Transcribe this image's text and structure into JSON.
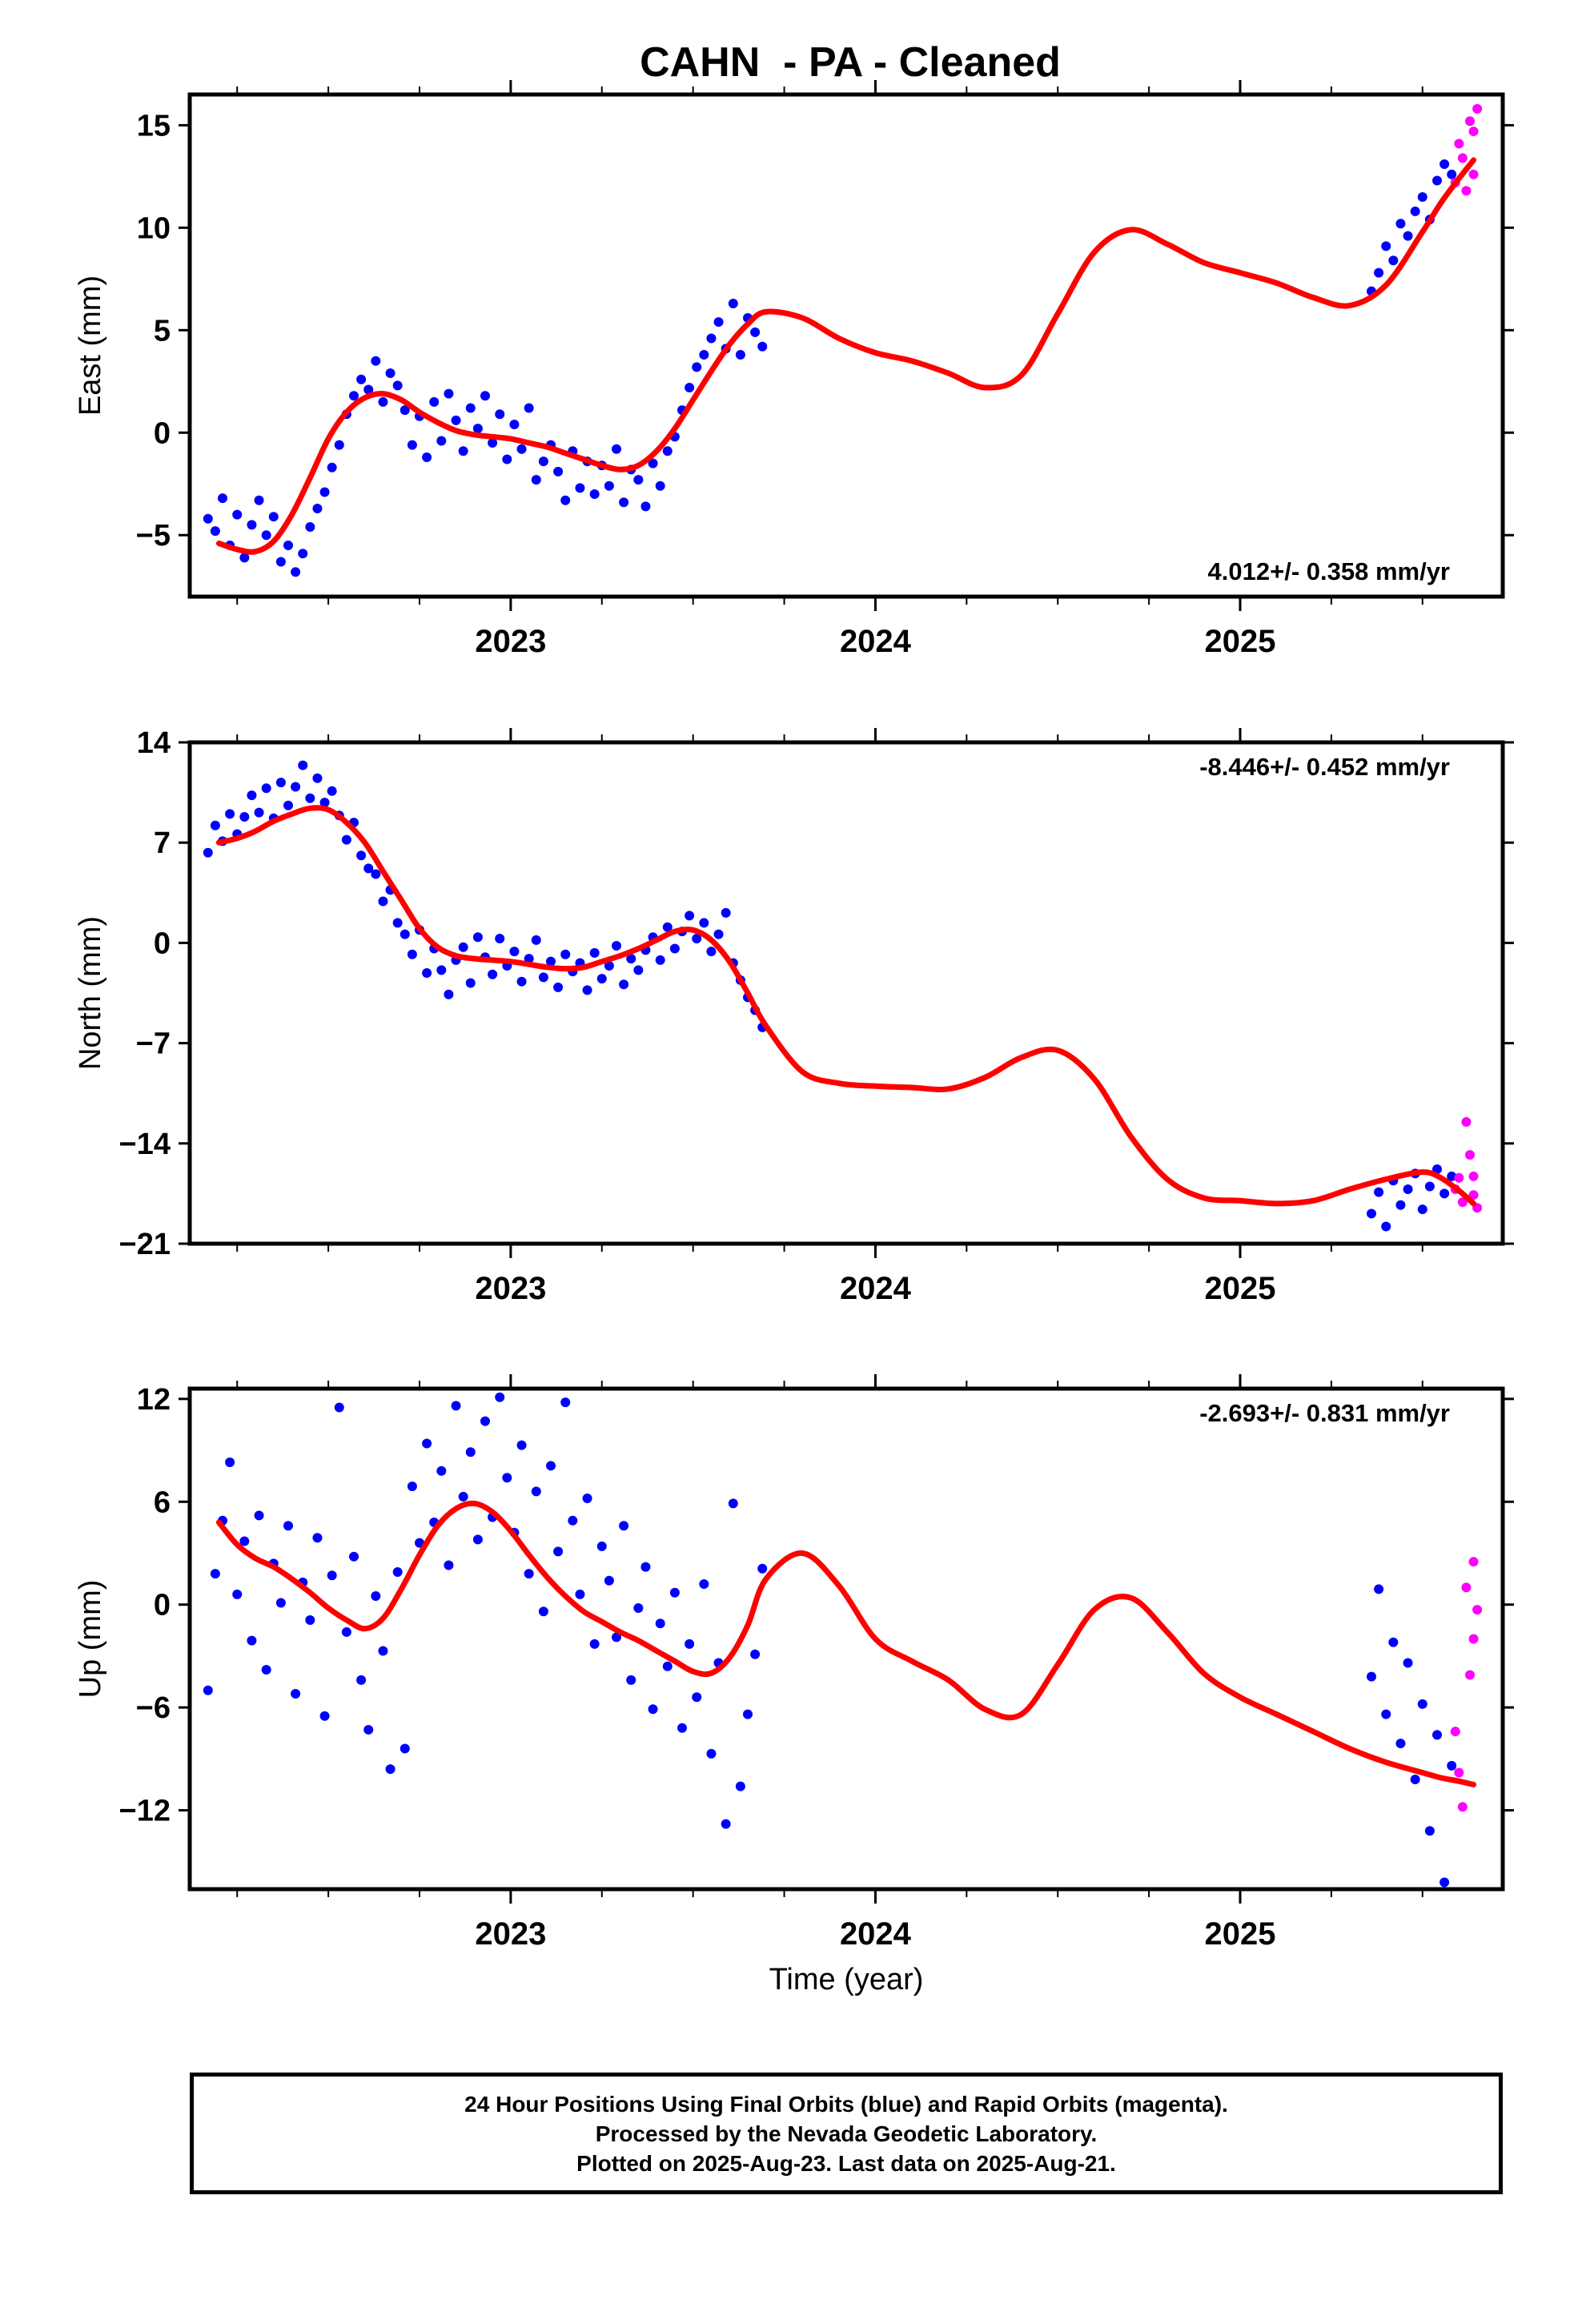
{
  "title": "CAHN  - PA - Cleaned",
  "colors": {
    "final": "#0000ff",
    "rapid": "#ff00ff",
    "model": "#ff0000"
  },
  "chart_data": [
    {
      "type": "scatter",
      "key": "east",
      "ylabel": "East (mm)",
      "xlabel": "",
      "xlim": [
        2022.12,
        2025.72
      ],
      "ylim": [
        -8,
        16.5
      ],
      "yticks": [
        -5,
        0,
        5,
        10,
        15
      ],
      "ytick_labels": [
        "−5",
        "0",
        "5",
        "10",
        "15"
      ],
      "xticks": [
        2023,
        2024,
        2025
      ],
      "xtick_labels": [
        "2023",
        "2024",
        "2025"
      ],
      "xminor": [
        2022.25,
        2022.5,
        2022.75,
        2023.25,
        2023.5,
        2023.75,
        2024.25,
        2024.5,
        2024.75,
        2025.25,
        2025.5
      ],
      "trend": "4.012+/- 0.358 mm/yr",
      "trend_position": "bottom-right",
      "model": {
        "name": "",
        "x": [
          2022.2,
          2022.25,
          2022.3,
          2022.35,
          2022.4,
          2022.45,
          2022.5,
          2022.55,
          2022.6,
          2022.65,
          2022.7,
          2022.75,
          2022.8,
          2022.85,
          2022.9,
          2022.95,
          2023.0,
          2023.05,
          2023.1,
          2023.15,
          2023.2,
          2023.25,
          2023.3,
          2023.35,
          2023.4,
          2023.45,
          2023.5,
          2023.55,
          2023.6,
          2023.65,
          2023.7,
          2023.8,
          2023.9,
          2024.0,
          2024.1,
          2024.2,
          2024.3,
          2024.4,
          2024.5,
          2024.6,
          2024.7,
          2024.8,
          2024.9,
          2025.0,
          2025.1,
          2025.2,
          2025.3,
          2025.4,
          2025.5,
          2025.55,
          2025.6,
          2025.64
        ],
        "y": [
          -5.4,
          -5.7,
          -5.8,
          -5.3,
          -4.0,
          -2.2,
          -0.3,
          1.0,
          1.7,
          1.9,
          1.6,
          1.0,
          0.5,
          0.1,
          -0.1,
          -0.2,
          -0.3,
          -0.5,
          -0.7,
          -1.0,
          -1.3,
          -1.6,
          -1.8,
          -1.6,
          -0.9,
          0.2,
          1.6,
          3.0,
          4.3,
          5.3,
          5.9,
          5.6,
          4.6,
          3.9,
          3.5,
          2.9,
          2.2,
          2.8,
          5.8,
          8.8,
          9.9,
          9.2,
          8.3,
          7.8,
          7.3,
          6.6,
          6.2,
          7.2,
          9.8,
          11.2,
          12.4,
          13.3
        ]
      },
      "final_dots": {
        "name": "",
        "x": [
          2022.17,
          2022.19,
          2022.21,
          2022.23,
          2022.25,
          2022.27,
          2022.29,
          2022.31,
          2022.33,
          2022.35,
          2022.37,
          2022.39,
          2022.41,
          2022.43,
          2022.45,
          2022.47,
          2022.49,
          2022.51,
          2022.53,
          2022.55,
          2022.57,
          2022.59,
          2022.61,
          2022.63,
          2022.65,
          2022.67,
          2022.69,
          2022.71,
          2022.73,
          2022.75,
          2022.77,
          2022.79,
          2022.81,
          2022.83,
          2022.85,
          2022.87,
          2022.89,
          2022.91,
          2022.93,
          2022.95,
          2022.97,
          2022.99,
          2023.01,
          2023.03,
          2023.05,
          2023.07,
          2023.09,
          2023.11,
          2023.13,
          2023.15,
          2023.17,
          2023.19,
          2023.21,
          2023.23,
          2023.25,
          2023.27,
          2023.29,
          2023.31,
          2023.33,
          2023.35,
          2023.37,
          2023.39,
          2023.41,
          2023.43,
          2023.45,
          2023.47,
          2023.49,
          2023.51,
          2023.53,
          2023.55,
          2023.57,
          2023.59,
          2023.61,
          2023.63,
          2023.65,
          2023.67,
          2023.69,
          2025.36,
          2025.38,
          2025.4,
          2025.42,
          2025.44,
          2025.46,
          2025.48,
          2025.5,
          2025.52,
          2025.54,
          2025.56,
          2025.58
        ],
        "y": [
          -4.2,
          -4.8,
          -3.2,
          -5.5,
          -4.0,
          -6.1,
          -4.5,
          -3.3,
          -5.0,
          -4.1,
          -6.3,
          -5.5,
          -6.8,
          -5.9,
          -4.6,
          -3.7,
          -2.9,
          -1.7,
          -0.6,
          0.9,
          1.8,
          2.6,
          2.1,
          3.5,
          1.5,
          2.9,
          2.3,
          1.1,
          -0.6,
          0.8,
          -1.2,
          1.5,
          -0.4,
          1.9,
          0.6,
          -0.9,
          1.2,
          0.2,
          1.8,
          -0.5,
          0.9,
          -1.3,
          0.4,
          -0.8,
          1.2,
          -2.3,
          -1.4,
          -0.6,
          -1.9,
          -3.3,
          -0.9,
          -2.7,
          -1.4,
          -3.0,
          -1.6,
          -2.6,
          -0.8,
          -3.4,
          -1.8,
          -2.3,
          -3.6,
          -1.5,
          -2.6,
          -0.9,
          -0.2,
          1.1,
          2.2,
          3.2,
          3.8,
          4.6,
          5.4,
          4.1,
          6.3,
          3.8,
          5.6,
          4.9,
          4.2,
          6.9,
          7.8,
          9.1,
          8.4,
          10.2,
          9.6,
          10.8,
          11.5,
          10.4,
          12.3,
          13.1,
          12.6
        ],
        "note": ""
      },
      "rapid_dots": {
        "name": "",
        "x": [
          2025.59,
          2025.6,
          2025.61,
          2025.62,
          2025.63,
          2025.64,
          2025.64,
          2025.65
        ],
        "y": [
          12.2,
          14.1,
          13.4,
          11.8,
          15.2,
          12.6,
          14.7,
          15.8
        ]
      }
    },
    {
      "type": "scatter",
      "key": "north",
      "ylabel": "North (mm)",
      "xlabel": "",
      "xlim": [
        2022.12,
        2025.72
      ],
      "ylim": [
        -21,
        14
      ],
      "yticks": [
        -21,
        -14,
        -7,
        0,
        7,
        14
      ],
      "ytick_labels": [
        "−21",
        "−14",
        "−7",
        "0",
        "7",
        "14"
      ],
      "xticks": [
        2023,
        2024,
        2025
      ],
      "xtick_labels": [
        "2023",
        "2024",
        "2025"
      ],
      "xminor": [
        2022.25,
        2022.5,
        2022.75,
        2023.25,
        2023.5,
        2023.75,
        2024.25,
        2024.5,
        2024.75,
        2025.25,
        2025.5
      ],
      "trend": "-8.446+/- 0.452 mm/yr",
      "trend_position": "top-right",
      "model": {
        "name": "",
        "x": [
          2022.2,
          2022.25,
          2022.3,
          2022.35,
          2022.4,
          2022.45,
          2022.5,
          2022.55,
          2022.6,
          2022.65,
          2022.7,
          2022.75,
          2022.8,
          2022.85,
          2022.9,
          2022.95,
          2023.0,
          2023.05,
          2023.1,
          2023.15,
          2023.2,
          2023.25,
          2023.3,
          2023.35,
          2023.4,
          2023.45,
          2023.5,
          2023.55,
          2023.6,
          2023.65,
          2023.7,
          2023.8,
          2023.9,
          2024.0,
          2024.1,
          2024.2,
          2024.3,
          2024.4,
          2024.5,
          2024.6,
          2024.7,
          2024.8,
          2024.9,
          2025.0,
          2025.1,
          2025.2,
          2025.3,
          2025.4,
          2025.5,
          2025.55,
          2025.6,
          2025.64
        ],
        "y": [
          7.0,
          7.3,
          7.8,
          8.5,
          9.0,
          9.4,
          9.3,
          8.4,
          7.0,
          5.0,
          3.0,
          1.0,
          -0.3,
          -0.9,
          -1.1,
          -1.2,
          -1.3,
          -1.5,
          -1.7,
          -1.8,
          -1.7,
          -1.3,
          -0.9,
          -0.4,
          0.2,
          0.8,
          0.9,
          0.2,
          -1.3,
          -3.5,
          -5.8,
          -9.0,
          -9.8,
          -10.0,
          -10.1,
          -10.2,
          -9.4,
          -8.0,
          -7.5,
          -9.5,
          -13.5,
          -16.5,
          -17.8,
          -18.0,
          -18.2,
          -18.0,
          -17.2,
          -16.5,
          -16.0,
          -16.4,
          -17.3,
          -18.2
        ]
      },
      "final_dots": {
        "name": "",
        "x": [
          2022.17,
          2022.19,
          2022.21,
          2022.23,
          2022.25,
          2022.27,
          2022.29,
          2022.31,
          2022.33,
          2022.35,
          2022.37,
          2022.39,
          2022.41,
          2022.43,
          2022.45,
          2022.47,
          2022.49,
          2022.51,
          2022.53,
          2022.55,
          2022.57,
          2022.59,
          2022.61,
          2022.63,
          2022.65,
          2022.67,
          2022.69,
          2022.71,
          2022.73,
          2022.75,
          2022.77,
          2022.79,
          2022.81,
          2022.83,
          2022.85,
          2022.87,
          2022.89,
          2022.91,
          2022.93,
          2022.95,
          2022.97,
          2022.99,
          2023.01,
          2023.03,
          2023.05,
          2023.07,
          2023.09,
          2023.11,
          2023.13,
          2023.15,
          2023.17,
          2023.19,
          2023.21,
          2023.23,
          2023.25,
          2023.27,
          2023.29,
          2023.31,
          2023.33,
          2023.35,
          2023.37,
          2023.39,
          2023.41,
          2023.43,
          2023.45,
          2023.47,
          2023.49,
          2023.51,
          2023.53,
          2023.55,
          2023.57,
          2023.59,
          2023.61,
          2023.63,
          2023.65,
          2023.67,
          2023.69,
          2025.36,
          2025.38,
          2025.4,
          2025.42,
          2025.44,
          2025.46,
          2025.48,
          2025.5,
          2025.52,
          2025.54,
          2025.56,
          2025.58
        ],
        "y": [
          6.3,
          8.2,
          7.1,
          9.0,
          7.6,
          8.8,
          10.3,
          9.1,
          10.8,
          8.7,
          11.2,
          9.6,
          10.9,
          12.4,
          10.1,
          11.5,
          9.8,
          10.6,
          8.9,
          7.2,
          8.4,
          6.1,
          5.2,
          4.8,
          2.9,
          3.7,
          1.4,
          0.6,
          -0.8,
          0.9,
          -2.1,
          -0.4,
          -1.9,
          -3.6,
          -1.2,
          -0.3,
          -2.8,
          0.4,
          -1.0,
          -2.2,
          0.3,
          -1.6,
          -0.6,
          -2.7,
          -1.1,
          0.2,
          -2.4,
          -1.3,
          -3.1,
          -0.8,
          -2.0,
          -1.4,
          -3.3,
          -0.7,
          -2.5,
          -1.6,
          -0.2,
          -2.9,
          -1.1,
          -1.9,
          -0.5,
          0.4,
          -1.2,
          1.1,
          -0.4,
          0.8,
          1.9,
          0.3,
          1.4,
          -0.6,
          0.6,
          2.1,
          -1.4,
          -2.6,
          -3.8,
          -4.7,
          -5.9,
          -18.9,
          -17.4,
          -19.8,
          -16.6,
          -18.3,
          -17.2,
          -16.1,
          -18.6,
          -17.0,
          -15.8,
          -17.5,
          -16.3
        ],
        "note": ""
      },
      "rapid_dots": {
        "name": "",
        "x": [
          2025.59,
          2025.6,
          2025.61,
          2025.62,
          2025.63,
          2025.64,
          2025.64,
          2025.65
        ],
        "y": [
          -17.2,
          -16.4,
          -18.1,
          -12.5,
          -14.8,
          -16.3,
          -17.6,
          -18.5
        ]
      }
    },
    {
      "type": "scatter",
      "key": "up",
      "ylabel": "Up (mm)",
      "xlabel": "Time (year)",
      "xlim": [
        2022.12,
        2025.72
      ],
      "ylim": [
        -16.6,
        12.6
      ],
      "yticks": [
        -12,
        -6,
        0,
        6,
        12
      ],
      "ytick_labels": [
        "−12",
        "−6",
        "0",
        "6",
        "12"
      ],
      "xticks": [
        2023,
        2024,
        2025
      ],
      "xtick_labels": [
        "2023",
        "2024",
        "2025"
      ],
      "xminor": [
        2022.25,
        2022.5,
        2022.75,
        2023.25,
        2023.5,
        2023.75,
        2024.25,
        2024.5,
        2024.75,
        2025.25,
        2025.5
      ],
      "trend": "-2.693+/- 0.831 mm/yr",
      "trend_position": "top-right",
      "model": {
        "name": "",
        "x": [
          2022.2,
          2022.25,
          2022.3,
          2022.35,
          2022.4,
          2022.45,
          2022.5,
          2022.55,
          2022.6,
          2022.65,
          2022.7,
          2022.75,
          2022.8,
          2022.85,
          2022.9,
          2022.95,
          2023.0,
          2023.05,
          2023.1,
          2023.15,
          2023.2,
          2023.25,
          2023.3,
          2023.35,
          2023.4,
          2023.45,
          2023.5,
          2023.55,
          2023.6,
          2023.65,
          2023.7,
          2023.8,
          2023.9,
          2024.0,
          2024.1,
          2024.2,
          2024.3,
          2024.4,
          2024.5,
          2024.6,
          2024.7,
          2024.8,
          2024.9,
          2025.0,
          2025.1,
          2025.2,
          2025.3,
          2025.4,
          2025.5,
          2025.55,
          2025.6,
          2025.64
        ],
        "y": [
          4.8,
          3.5,
          2.7,
          2.2,
          1.5,
          0.7,
          -0.2,
          -0.9,
          -1.4,
          -0.8,
          0.9,
          2.9,
          4.6,
          5.6,
          5.9,
          5.4,
          4.3,
          2.9,
          1.6,
          0.5,
          -0.4,
          -1.0,
          -1.6,
          -2.1,
          -2.7,
          -3.3,
          -3.9,
          -4.0,
          -3.1,
          -1.2,
          1.5,
          3.0,
          1.1,
          -2.0,
          -3.3,
          -4.4,
          -6.1,
          -6.4,
          -3.5,
          -0.3,
          0.4,
          -1.6,
          -4.0,
          -5.4,
          -6.4,
          -7.4,
          -8.4,
          -9.2,
          -9.8,
          -10.1,
          -10.3,
          -10.5
        ]
      },
      "final_dots": {
        "name": "",
        "x": [
          2022.17,
          2022.19,
          2022.21,
          2022.23,
          2022.25,
          2022.27,
          2022.29,
          2022.31,
          2022.33,
          2022.35,
          2022.37,
          2022.39,
          2022.41,
          2022.43,
          2022.45,
          2022.47,
          2022.49,
          2022.51,
          2022.53,
          2022.55,
          2022.57,
          2022.59,
          2022.61,
          2022.63,
          2022.65,
          2022.67,
          2022.69,
          2022.71,
          2022.73,
          2022.75,
          2022.77,
          2022.79,
          2022.81,
          2022.83,
          2022.85,
          2022.87,
          2022.89,
          2022.91,
          2022.93,
          2022.95,
          2022.97,
          2022.99,
          2023.01,
          2023.03,
          2023.05,
          2023.07,
          2023.09,
          2023.11,
          2023.13,
          2023.15,
          2023.17,
          2023.19,
          2023.21,
          2023.23,
          2023.25,
          2023.27,
          2023.29,
          2023.31,
          2023.33,
          2023.35,
          2023.37,
          2023.39,
          2023.41,
          2023.43,
          2023.45,
          2023.47,
          2023.49,
          2023.51,
          2023.53,
          2023.55,
          2023.57,
          2023.59,
          2023.61,
          2023.63,
          2023.65,
          2023.67,
          2023.69,
          2025.36,
          2025.38,
          2025.4,
          2025.42,
          2025.44,
          2025.46,
          2025.48,
          2025.5,
          2025.52,
          2025.54,
          2025.56,
          2025.58
        ],
        "y": [
          -5.0,
          1.8,
          4.9,
          8.3,
          0.6,
          3.7,
          -2.1,
          5.2,
          -3.8,
          2.4,
          0.1,
          4.6,
          -5.2,
          1.3,
          -0.9,
          3.9,
          -6.5,
          1.7,
          11.5,
          -1.6,
          2.8,
          -4.4,
          -7.3,
          0.5,
          -2.7,
          -9.6,
          1.9,
          -8.4,
          6.9,
          3.6,
          9.4,
          4.8,
          7.8,
          2.3,
          11.6,
          6.3,
          8.9,
          3.8,
          10.7,
          5.1,
          12.1,
          7.4,
          4.2,
          9.3,
          1.8,
          6.6,
          -0.4,
          8.1,
          3.1,
          11.8,
          4.9,
          0.6,
          6.2,
          -2.3,
          3.4,
          1.4,
          -1.9,
          4.6,
          -4.4,
          -0.2,
          2.2,
          -6.1,
          -1.1,
          -3.6,
          0.7,
          -7.2,
          -2.3,
          -5.4,
          1.2,
          -8.7,
          -3.4,
          -12.8,
          5.9,
          -10.6,
          -6.4,
          -2.9,
          2.1,
          -4.2,
          0.9,
          -6.4,
          -2.2,
          -8.1,
          -3.4,
          -10.2,
          -5.8,
          -13.2,
          -7.6,
          -16.2,
          -9.4
        ],
        "note": ""
      },
      "rapid_dots": {
        "name": "",
        "x": [
          2025.59,
          2025.6,
          2025.61,
          2025.62,
          2025.63,
          2025.64,
          2025.64,
          2025.65
        ],
        "y": [
          -7.4,
          -9.8,
          -11.8,
          1.0,
          -4.1,
          2.5,
          -2.0,
          -0.3
        ]
      }
    }
  ],
  "caption": {
    "line1": "24 Hour Positions Using Final Orbits (blue) and Rapid Orbits (magenta).",
    "line2": "Processed by the Nevada Geodetic Laboratory.",
    "line3": "Plotted on 2025-Aug-23. Last data on 2025-Aug-21."
  }
}
